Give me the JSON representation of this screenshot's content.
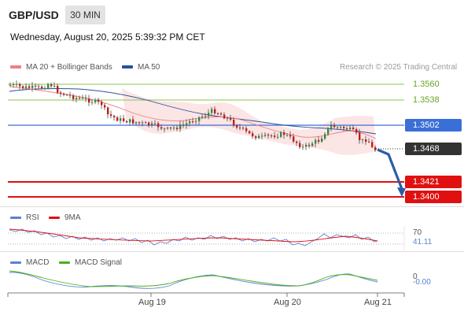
{
  "header": {
    "pair": "GBP/USD",
    "timeframe": "30 MIN",
    "datetime": "Wednesday, August 20, 2025 5:39:32 PM CET"
  },
  "legend": {
    "ma20_label": "MA 20 + Bollinger Bands",
    "ma50_label": "MA 50",
    "credit": "Research © 2025 Trading Central"
  },
  "colors": {
    "ma20": "#f08080",
    "ma50": "#2c4f9e",
    "bollinger_fill": "#fbe0e0",
    "resistance": "#8bc34a",
    "pivot": "#3a6fd8",
    "support": "#e01010",
    "current": "#333333",
    "arrow": "#2a5da8",
    "rsi": "#5b7fd4",
    "rsi_ma": "#e01010",
    "macd": "#5b7fd4",
    "macd_signal": "#4caf1a"
  },
  "levels": [
    {
      "label": "1.3560",
      "kind": "resistance"
    },
    {
      "label": "1.3538",
      "kind": "resistance"
    },
    {
      "label": "1.3502",
      "kind": "pivot"
    },
    {
      "label": "1.3468",
      "kind": "current"
    },
    {
      "label": "1.3421",
      "kind": "support"
    },
    {
      "label": "1.3400",
      "kind": "support"
    }
  ],
  "rsi": {
    "title": "RSI",
    "ma_label": "9MA",
    "level_70": "70",
    "value": "41.11"
  },
  "macd": {
    "title": "MACD",
    "signal_label": "MACD Signal",
    "zero": "0",
    "value": "-0.00"
  },
  "xaxis": {
    "ticks": [
      "Aug 19",
      "Aug 20",
      "Aug 21"
    ]
  }
}
